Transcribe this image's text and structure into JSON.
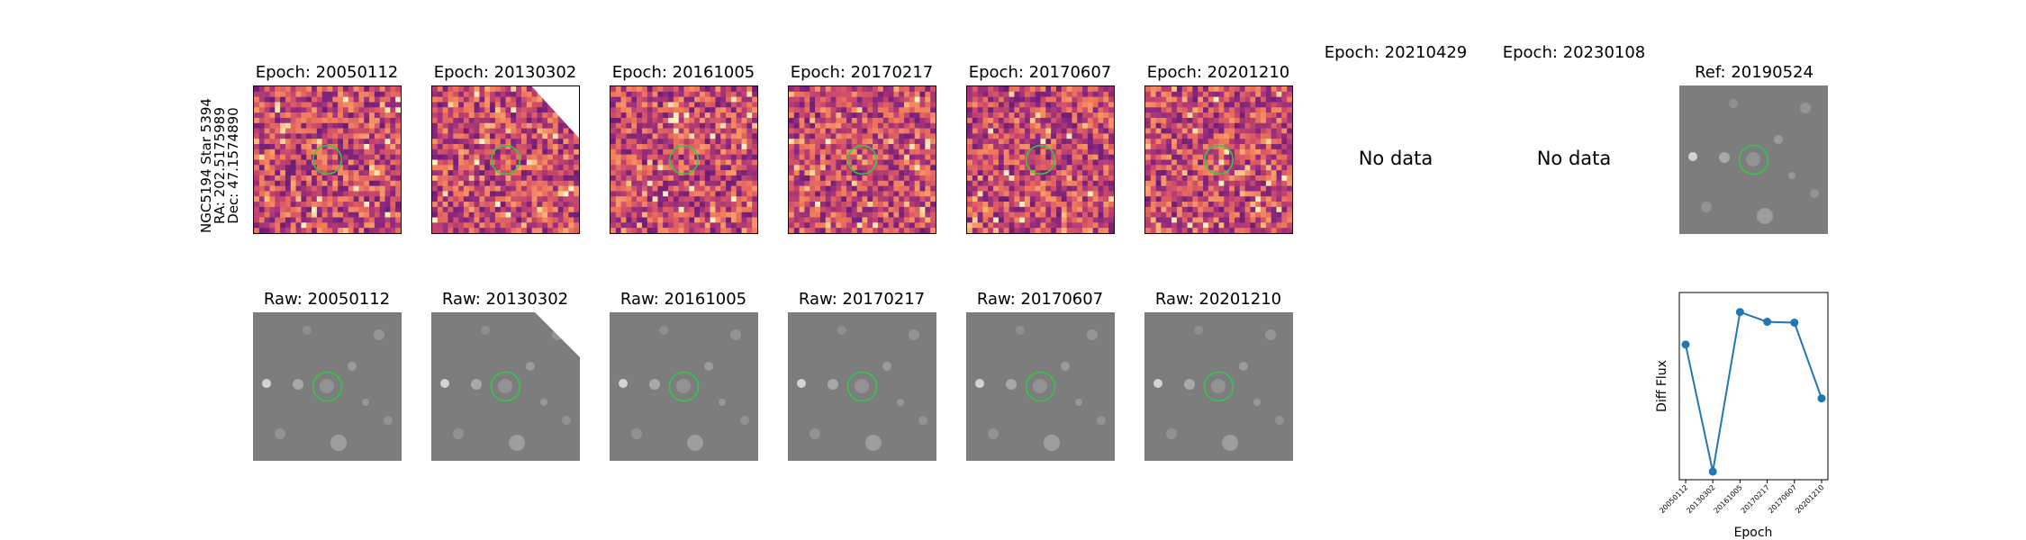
{
  "star_info": {
    "line1": "NGC5194 Star 5394",
    "line2": "RA: 202.5175989",
    "line3": "Dec: 47.1574890"
  },
  "diff_panels": [
    {
      "title": "Epoch: 20050112"
    },
    {
      "title": "Epoch: 20130302"
    },
    {
      "title": "Epoch: 20161005"
    },
    {
      "title": "Epoch: 20170217"
    },
    {
      "title": "Epoch: 20170607"
    },
    {
      "title": "Epoch: 20201210"
    }
  ],
  "empty_panels": [
    {
      "title": "Epoch: 20210429",
      "message": "No data"
    },
    {
      "title": "Epoch: 20230108",
      "message": "No data"
    }
  ],
  "ref_panel": {
    "title": "Ref: 20190524"
  },
  "raw_panels": [
    {
      "title": "Raw: 20050112"
    },
    {
      "title": "Raw: 20130302"
    },
    {
      "title": "Raw: 20161005"
    },
    {
      "title": "Raw: 20170217"
    },
    {
      "title": "Raw: 20170607"
    },
    {
      "title": "Raw: 20201210"
    }
  ],
  "colors": {
    "aperture": "#2ecc40",
    "series": "#1f77b4"
  },
  "chart_data": {
    "type": "line",
    "xlabel": "Epoch",
    "ylabel": "Diff Flux",
    "categories": [
      "20050112",
      "20130302",
      "20161005",
      "20170217",
      "20170607",
      "20201210"
    ],
    "values": [
      0.68,
      -0.1,
      0.88,
      0.82,
      0.815,
      0.35
    ],
    "ylim": [
      -0.15,
      1.0
    ],
    "grid": false
  }
}
